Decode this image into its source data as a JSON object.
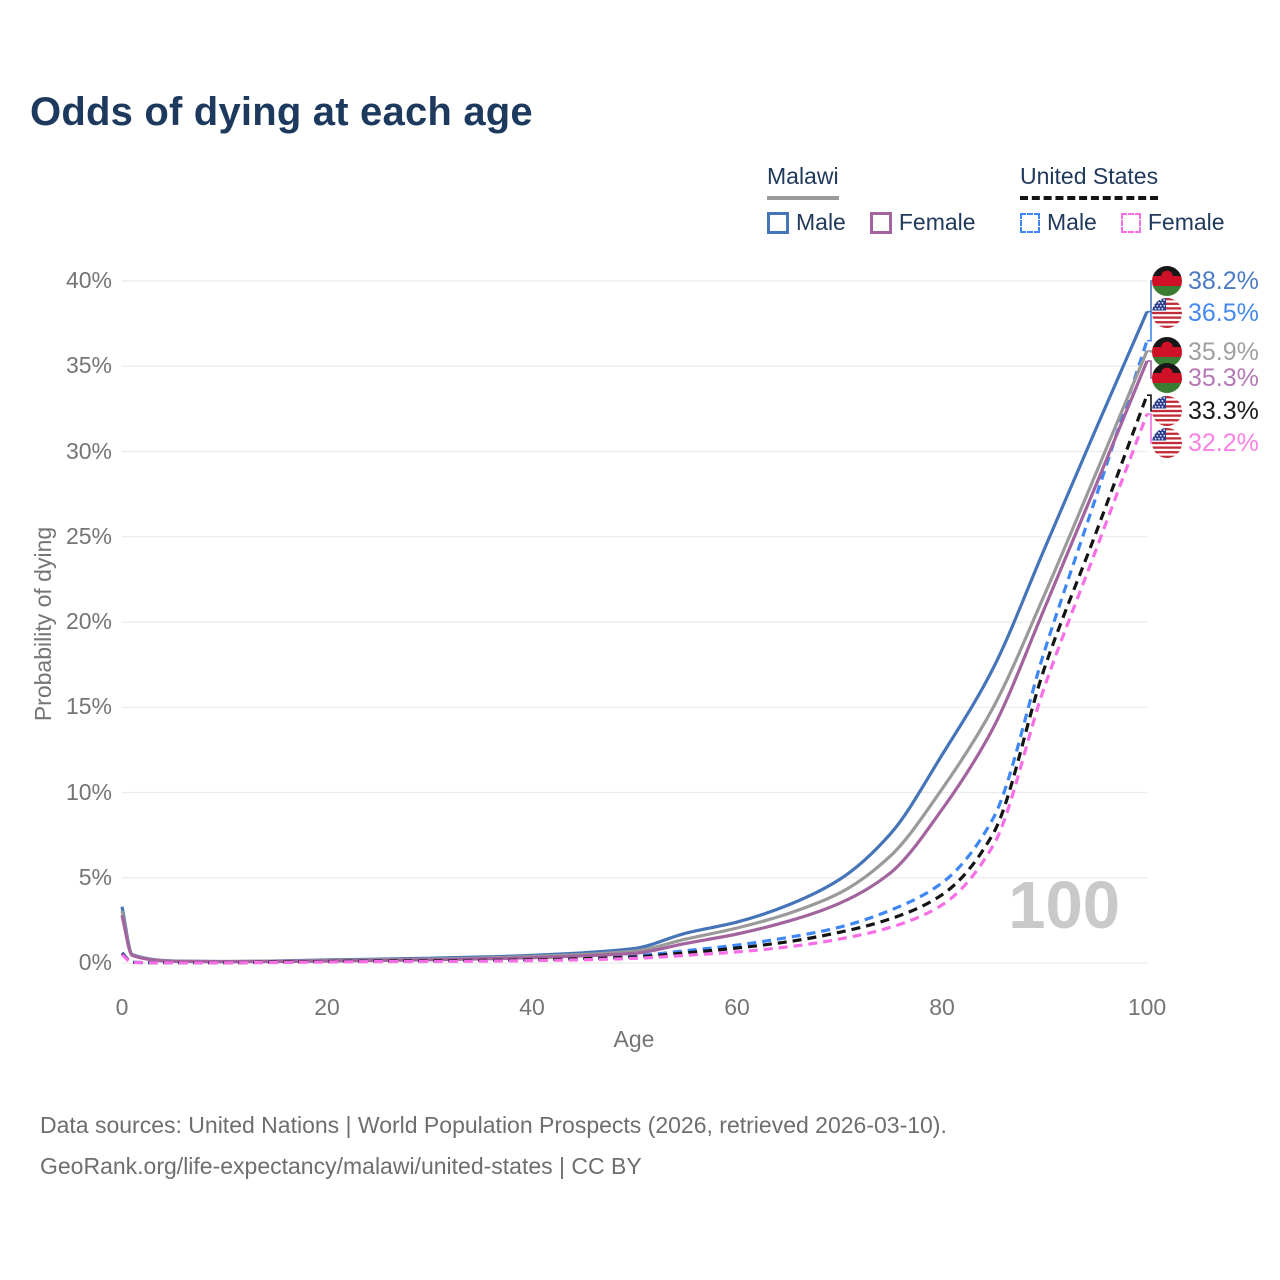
{
  "title": "Odds of dying at each age",
  "legend": {
    "groups": [
      {
        "label": "Malawi",
        "line_style": "solid",
        "line_color": "#9a9a9a",
        "items": [
          {
            "label": "Male",
            "color": "#4574b8"
          },
          {
            "label": "Female",
            "color": "#a2639e"
          }
        ]
      },
      {
        "label": "United States",
        "line_style": "dashed",
        "line_color": "#141414",
        "items": [
          {
            "label": "Male",
            "color": "#3e87f5"
          },
          {
            "label": "Female",
            "color": "#f86ee6"
          }
        ]
      }
    ]
  },
  "chart_data": {
    "type": "line",
    "title": "Odds of dying at each age",
    "xlabel": "Age",
    "ylabel": "Probability of dying",
    "xlim": [
      0,
      100
    ],
    "ylim": [
      0,
      40
    ],
    "grid": "horizontal",
    "legend_position": "top-right",
    "watermark": "100",
    "x_ticks": [
      "0",
      "20",
      "40",
      "60",
      "80",
      "100"
    ],
    "y_ticks": [
      "40%",
      "35%",
      "30%",
      "25%",
      "20%",
      "15%",
      "10%",
      "5%",
      "0%"
    ],
    "x": [
      0,
      1,
      5,
      10,
      15,
      20,
      25,
      30,
      35,
      40,
      45,
      50,
      55,
      60,
      65,
      70,
      75,
      80,
      85,
      90,
      95,
      100
    ],
    "series": [
      {
        "name": "Malawi Male",
        "country": "Malawi",
        "sex": "Male",
        "style": "solid",
        "color": "#4574b8",
        "label_color": "#4c7bc4",
        "flag": "malawi",
        "end_label": "38.2%",
        "values": [
          3.3,
          0.5,
          0.12,
          0.09,
          0.12,
          0.18,
          0.22,
          0.28,
          0.35,
          0.45,
          0.6,
          0.85,
          1.75,
          2.4,
          3.4,
          4.9,
          7.6,
          12.2,
          17.3,
          24.3,
          31.3,
          38.2
        ]
      },
      {
        "name": "United States Male",
        "country": "United States",
        "sex": "Male",
        "style": "dashed",
        "color": "#3e87f5",
        "label_color": "#4489f0",
        "flag": "us",
        "end_label": "36.5%",
        "values": [
          0.6,
          0.04,
          0.02,
          0.02,
          0.06,
          0.11,
          0.14,
          0.16,
          0.18,
          0.22,
          0.3,
          0.42,
          0.72,
          1.05,
          1.5,
          2.1,
          3.1,
          4.7,
          8.5,
          18.3,
          27.3,
          36.5
        ]
      },
      {
        "name": "Malawi Both sexes",
        "country": "Malawi",
        "sex": "Both sexes",
        "style": "solid",
        "color": "#9a9a9a",
        "label_color": "#a0a0a0",
        "flag": "malawi",
        "end_label": "35.9%",
        "values": [
          3.05,
          0.47,
          0.11,
          0.085,
          0.105,
          0.15,
          0.19,
          0.23,
          0.29,
          0.38,
          0.5,
          0.7,
          1.4,
          2.05,
          2.9,
          4.1,
          6.3,
          10.2,
          15.0,
          21.6,
          28.7,
          35.9
        ]
      },
      {
        "name": "Malawi Female",
        "country": "Malawi",
        "sex": "Female",
        "style": "solid",
        "color": "#a2639e",
        "label_color": "#b478b4",
        "flag": "malawi",
        "end_label": "35.3%",
        "values": [
          2.8,
          0.44,
          0.1,
          0.08,
          0.09,
          0.12,
          0.15,
          0.19,
          0.24,
          0.31,
          0.42,
          0.57,
          1.15,
          1.7,
          2.45,
          3.5,
          5.3,
          9.0,
          13.8,
          20.8,
          28.0,
          35.3
        ]
      },
      {
        "name": "United States Both sexes",
        "country": "United States",
        "sex": "Both sexes",
        "style": "dashed",
        "color": "#141414",
        "label_color": "#1a1a1a",
        "flag": "us",
        "end_label": "33.3%",
        "values": [
          0.55,
          0.035,
          0.015,
          0.015,
          0.05,
          0.09,
          0.11,
          0.13,
          0.15,
          0.18,
          0.25,
          0.35,
          0.6,
          0.88,
          1.25,
          1.8,
          2.6,
          4.0,
          7.6,
          17.3,
          25.2,
          33.3
        ]
      },
      {
        "name": "United States Female",
        "country": "United States",
        "sex": "Female",
        "style": "dashed",
        "color": "#f86ee6",
        "label_color": "#fa82e4",
        "flag": "us",
        "end_label": "32.2%",
        "values": [
          0.5,
          0.03,
          0.012,
          0.012,
          0.03,
          0.06,
          0.08,
          0.09,
          0.11,
          0.14,
          0.19,
          0.27,
          0.45,
          0.65,
          0.95,
          1.4,
          2.1,
          3.4,
          6.9,
          16.2,
          24.2,
          32.2
        ]
      }
    ]
  },
  "footer": {
    "line1": "Data sources: United Nations | World Population Prospects (2026, retrieved 2026-03-10).",
    "line2": "GeoRank.org/life-expectancy/malawi/united-states | CC BY"
  }
}
